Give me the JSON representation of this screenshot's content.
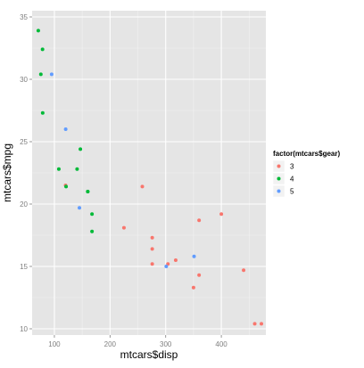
{
  "chart_data": {
    "type": "scatter",
    "title": "",
    "xlabel": "mtcars$disp",
    "ylabel": "mtcars$mpg",
    "xlim": [
      60,
      480
    ],
    "ylim": [
      9.5,
      35.5
    ],
    "x_ticks": [
      100,
      200,
      300,
      400
    ],
    "y_ticks": [
      10,
      15,
      20,
      25,
      30,
      35
    ],
    "x_tick_labels": [
      "100",
      "200",
      "300",
      "400"
    ],
    "y_tick_labels": [
      "10",
      "15",
      "20",
      "25",
      "30",
      "35"
    ],
    "grid": true,
    "legend": {
      "title": "factor(mtcars$gear)",
      "position": "right",
      "items": [
        {
          "label": "3",
          "color": "#F8766D"
        },
        {
          "label": "4",
          "color": "#00BA38"
        },
        {
          "label": "5",
          "color": "#619CFF"
        }
      ]
    },
    "series": [
      {
        "label": "3",
        "color": "#F8766D",
        "points": [
          {
            "x": 258,
            "y": 21.4
          },
          {
            "x": 360,
            "y": 18.7
          },
          {
            "x": 225,
            "y": 18.1
          },
          {
            "x": 360,
            "y": 14.3
          },
          {
            "x": 275.8,
            "y": 16.4
          },
          {
            "x": 275.8,
            "y": 17.3
          },
          {
            "x": 275.8,
            "y": 15.2
          },
          {
            "x": 472,
            "y": 10.4
          },
          {
            "x": 460,
            "y": 10.4
          },
          {
            "x": 440,
            "y": 14.7
          },
          {
            "x": 120.1,
            "y": 21.5
          },
          {
            "x": 318,
            "y": 15.5
          },
          {
            "x": 304,
            "y": 15.2
          },
          {
            "x": 350,
            "y": 13.3
          },
          {
            "x": 400,
            "y": 19.2
          }
        ]
      },
      {
        "label": "4",
        "color": "#00BA38",
        "points": [
          {
            "x": 160,
            "y": 21.0
          },
          {
            "x": 160,
            "y": 21.0
          },
          {
            "x": 108,
            "y": 22.8
          },
          {
            "x": 146.7,
            "y": 24.4
          },
          {
            "x": 140.8,
            "y": 22.8
          },
          {
            "x": 167.6,
            "y": 19.2
          },
          {
            "x": 167.6,
            "y": 17.8
          },
          {
            "x": 78.7,
            "y": 32.4
          },
          {
            "x": 75.7,
            "y": 30.4
          },
          {
            "x": 71.1,
            "y": 33.9
          },
          {
            "x": 79,
            "y": 27.3
          },
          {
            "x": 121,
            "y": 21.4
          }
        ]
      },
      {
        "label": "5",
        "color": "#619CFF",
        "points": [
          {
            "x": 120.3,
            "y": 26.0
          },
          {
            "x": 95.1,
            "y": 30.4
          },
          {
            "x": 351,
            "y": 15.8
          },
          {
            "x": 145,
            "y": 19.7
          },
          {
            "x": 301,
            "y": 15.0
          }
        ]
      }
    ]
  }
}
